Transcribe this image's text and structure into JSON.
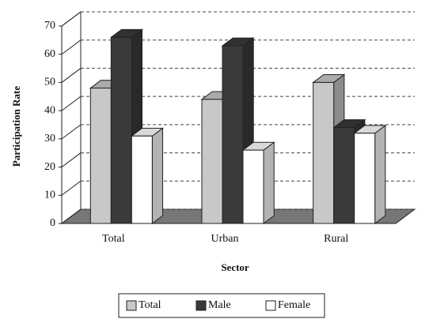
{
  "chart_data": {
    "type": "bar3d",
    "x_label": "Sector",
    "y_label": "Participation Rate",
    "categories": [
      "Total",
      "Urban",
      "Rural"
    ],
    "series": [
      {
        "name": "Total",
        "color": "#c8c8c8",
        "values": [
          48,
          44,
          50
        ]
      },
      {
        "name": "Male",
        "color": "#3a3a3a",
        "values": [
          66,
          63,
          34
        ]
      },
      {
        "name": "Female",
        "color": "#ffffff",
        "values": [
          31,
          26,
          32
        ]
      }
    ],
    "ylim": [
      0,
      70
    ],
    "yticks": [
      0,
      10,
      20,
      30,
      40,
      50,
      60,
      70
    ],
    "grid": true,
    "legend": "bottom"
  }
}
